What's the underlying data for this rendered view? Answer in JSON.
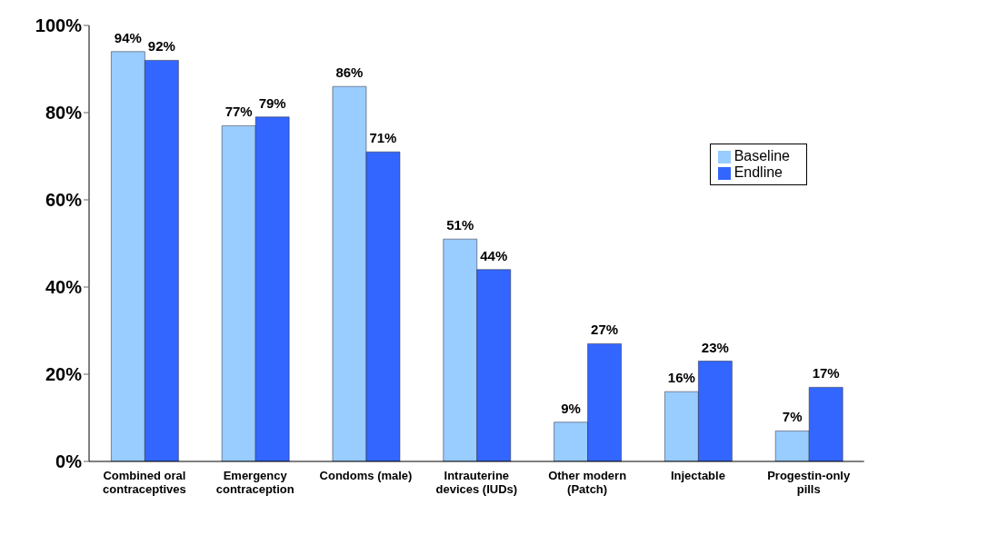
{
  "chart_data": {
    "type": "bar",
    "categories": [
      "Combined oral contraceptives",
      "Emergency contraception",
      "Condoms (male)",
      "Intrauterine devices (IUDs)",
      "Other modern (Patch)",
      "Injectable",
      "Progestin-only pills"
    ],
    "series": [
      {
        "name": "Baseline",
        "color": "#99ccff",
        "values": [
          94,
          77,
          86,
          51,
          9,
          16,
          7
        ],
        "value_labels": [
          "94%",
          "77%",
          "86%",
          "51%",
          "9%",
          "16%",
          "7%"
        ]
      },
      {
        "name": "Endline",
        "color": "#3366ff",
        "values": [
          92,
          79,
          71,
          44,
          27,
          23,
          17
        ],
        "value_labels": [
          "92%",
          "79%",
          "71%",
          "44%",
          "27%",
          "23%",
          "17%"
        ]
      }
    ],
    "ylim": [
      0,
      100
    ],
    "yticks": [
      {
        "value": 0,
        "label": "0%"
      },
      {
        "value": 20,
        "label": "20%"
      },
      {
        "value": 40,
        "label": "40%"
      },
      {
        "value": 60,
        "label": "60%"
      },
      {
        "value": 80,
        "label": "80%"
      },
      {
        "value": 100,
        "label": "100%"
      }
    ],
    "grid": false,
    "legend": "top right"
  }
}
